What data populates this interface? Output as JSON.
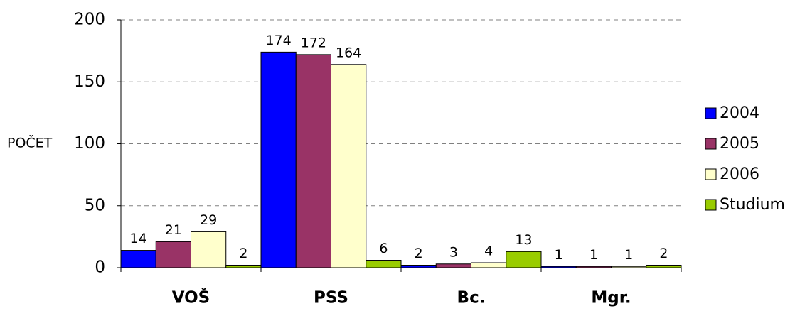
{
  "chart_data": {
    "type": "bar",
    "y_label": "POČET",
    "categories": [
      "VOŠ",
      "PSS",
      "Bc.",
      "Mgr."
    ],
    "series": [
      {
        "name": "2004",
        "color": "#0000ff",
        "values": [
          14,
          174,
          2,
          1
        ]
      },
      {
        "name": "2005",
        "color": "#993366",
        "values": [
          21,
          172,
          3,
          1
        ]
      },
      {
        "name": "2006",
        "color": "#ffffcc",
        "values": [
          29,
          164,
          4,
          1
        ]
      },
      {
        "name": "Studium",
        "color": "#99cc00",
        "values": [
          2,
          6,
          13,
          2
        ]
      }
    ],
    "ylim": [
      0,
      200
    ],
    "yticks": [
      0,
      50,
      100,
      150,
      200
    ],
    "grid": true,
    "legend": "right"
  }
}
